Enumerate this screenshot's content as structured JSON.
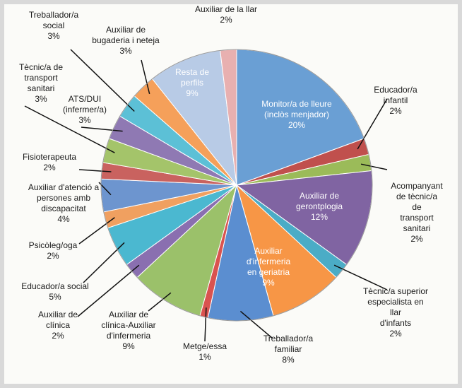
{
  "chart_data": {
    "type": "pie",
    "categories": [
      "Monitor/a de lleure\n(inclòs menjador)",
      "Educador/a infantil",
      "Acompanyant\nde tècnic/a de\ntransport sanitari",
      "Auxiliar de\ngerontplogia",
      "Tècnic/a superior\nespecialista en llar\nd'infants",
      "Auxiliar\nd'infermeria\nen geriatria",
      "Treballador/a\nfamiliar",
      "Metge/essa",
      "Auxiliar de\nclínica-Auxiliar\nd'infermeria",
      "Auxiliar de\nclínica",
      "Educador/a social",
      "Psicòleg/oga",
      "Auxiliar  d'atenció a\npersones amb\ndiscapacitat",
      "Fisioterapeuta",
      "Tècnic/a de\ntransport\nsanitari",
      "ATS/DUI\n(infermer/a)",
      "Treballador/a\nsocial",
      "Auxiliar de\nbugaderia i neteja",
      "Resta de\nperfils",
      "Auxiliar de la llar"
    ],
    "values": [
      20,
      2,
      2,
      12,
      2,
      9,
      8,
      1,
      9,
      2,
      5,
      2,
      4,
      2,
      3,
      3,
      3,
      3,
      9,
      2
    ],
    "value_labels": [
      "20%",
      "2%",
      "2%",
      "12%",
      "2%",
      "9%",
      "8%",
      "1%",
      "9%",
      "2%",
      "5%",
      "2%",
      "4%",
      "2%",
      "3%",
      "3%",
      "3%",
      "3%",
      "9%",
      "2%"
    ],
    "colors": [
      "#6a9fd4",
      "#c0504d",
      "#9bbb59",
      "#8064a2",
      "#4bacc6",
      "#f79646",
      "#5b8ed0",
      "#d9534f",
      "#9bc16a",
      "#8a6fb0",
      "#4bb8d0",
      "#f0a060",
      "#6d95cf",
      "#c9625f",
      "#a4c46a",
      "#8f79b3",
      "#5cc0d6",
      "#f5a05a",
      "#b8cbe6",
      "#e8b0b0"
    ]
  }
}
